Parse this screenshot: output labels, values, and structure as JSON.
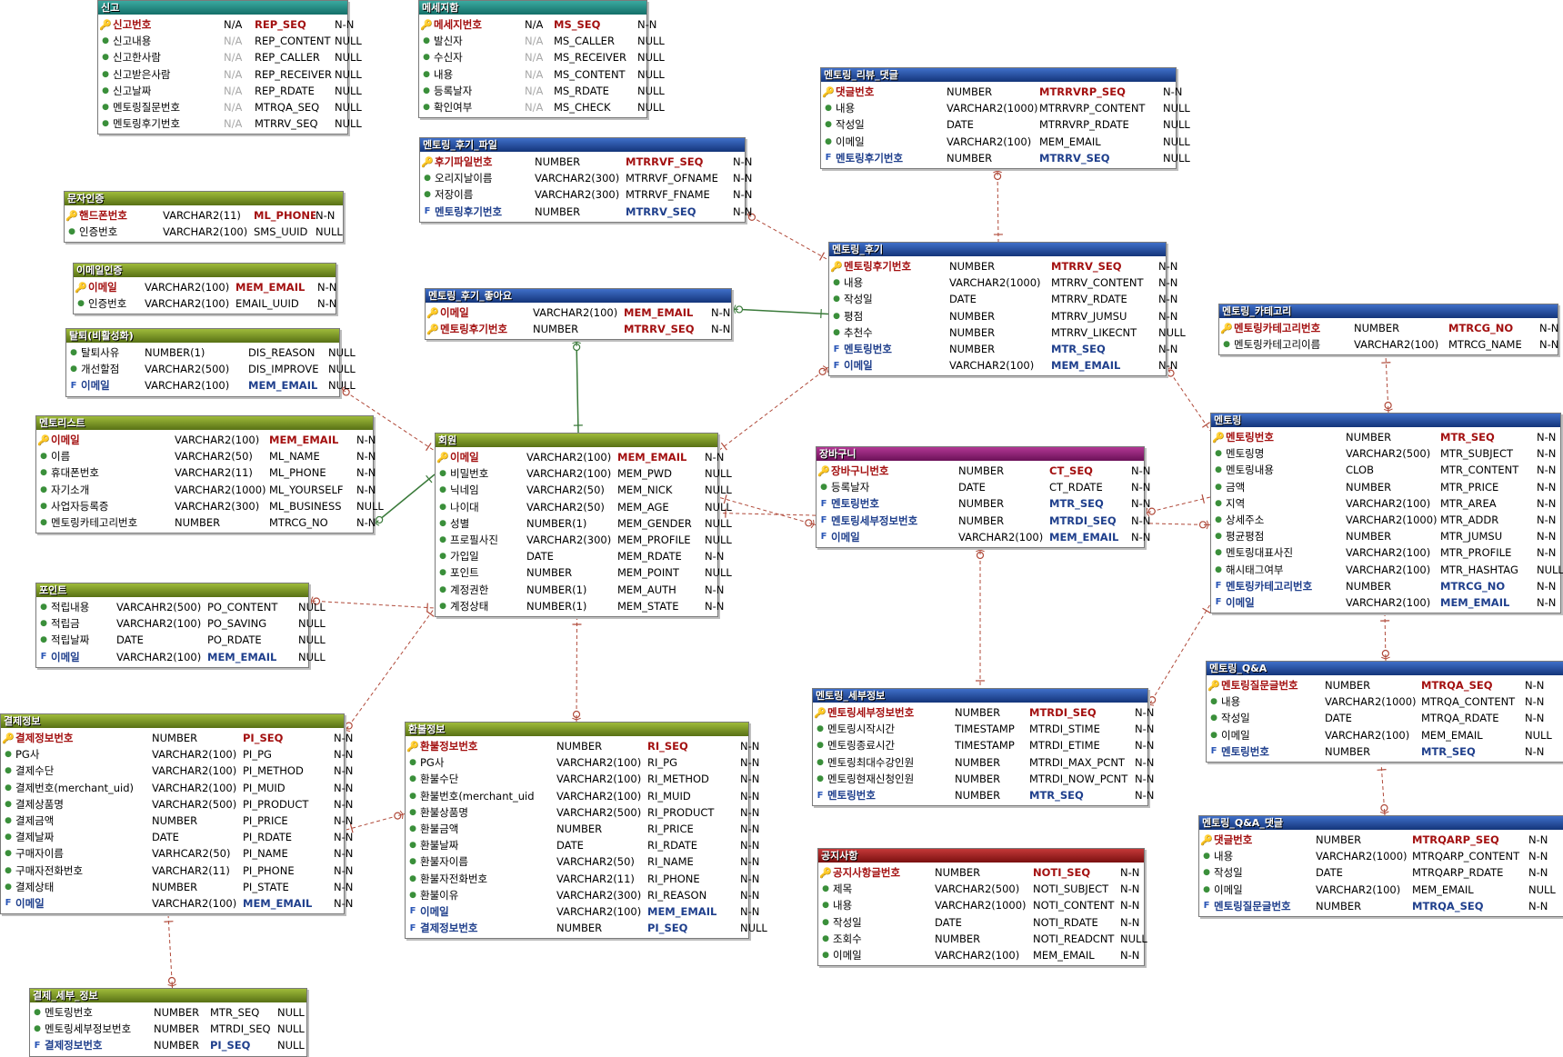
{
  "colors": {
    "teal": "#2a8f87",
    "green": "#7a942a",
    "blue": "#1f4ea0",
    "magenta": "#94247a",
    "red": "#a11d1d",
    "relation_line": "#b04a3a",
    "identifying_line": "#3a7a3a"
  },
  "entities": [
    {
      "id": "report",
      "title": "신고",
      "color": "teal",
      "rows": [
        [
          "pk",
          "신고번호",
          "N/A",
          "REP_SEQ",
          "N-N"
        ],
        [
          "a",
          "신고내용",
          "N/A",
          "REP_CONTENT",
          "NULL"
        ],
        [
          "a",
          "신고한사람",
          "N/A",
          "REP_CALLER",
          "NULL"
        ],
        [
          "a",
          "신고받은사람",
          "N/A",
          "REP_RECEIVER",
          "NULL"
        ],
        [
          "a",
          "신고날짜",
          "N/A",
          "REP_RDATE",
          "NULL"
        ],
        [
          "a",
          "멘토링질문번호",
          "N/A",
          "MTRQA_SEQ",
          "NULL"
        ],
        [
          "a",
          "멘토링후기번호",
          "N/A",
          "MTRRV_SEQ",
          "NULL"
        ]
      ]
    },
    {
      "id": "message",
      "title": "메세지함",
      "color": "teal",
      "rows": [
        [
          "pk",
          "메세지번호",
          "N/A",
          "MS_SEQ",
          "N-N"
        ],
        [
          "a",
          "발신자",
          "N/A",
          "MS_CALLER",
          "NULL"
        ],
        [
          "a",
          "수신자",
          "N/A",
          "MS_RECEIVER",
          "NULL"
        ],
        [
          "a",
          "내용",
          "N/A",
          "MS_CONTENT",
          "NULL"
        ],
        [
          "a",
          "등록날자",
          "N/A",
          "MS_RDATE",
          "NULL"
        ],
        [
          "a",
          "확인여부",
          "N/A",
          "MS_CHECK",
          "NULL"
        ]
      ]
    },
    {
      "id": "sms_auth",
      "title": "문자인증",
      "color": "green",
      "rows": [
        [
          "pk",
          "핸드폰번호",
          "VARCHAR2(11)",
          "ML_PHONE",
          "N-N"
        ],
        [
          "a",
          "인증번호",
          "VARCHAR2(100)",
          "SMS_UUID",
          "NULL"
        ]
      ]
    },
    {
      "id": "email_auth",
      "title": "이메일인증",
      "color": "green",
      "rows": [
        [
          "pk",
          "이메일",
          "VARCHAR2(100)",
          "MEM_EMAIL",
          "N-N"
        ],
        [
          "a",
          "인증번호",
          "VARCHAR2(100)",
          "EMAIL_UUID",
          "N-N"
        ]
      ]
    },
    {
      "id": "withdraw",
      "title": "탈퇴(비활성화)",
      "color": "green",
      "rows": [
        [
          "a",
          "탈퇴사유",
          "NUMBER(1)",
          "DIS_REASON",
          "NULL"
        ],
        [
          "a",
          "개선할점",
          "VARCHAR2(500)",
          "DIS_IMPROVE",
          "NULL"
        ],
        [
          "fk",
          "이메일",
          "VARCHAR2(100)",
          "MEM_EMAIL",
          "NULL"
        ]
      ]
    },
    {
      "id": "mentor_list",
      "title": "멘토리스트",
      "color": "green",
      "rows": [
        [
          "pfk",
          "이메일",
          "VARCHAR2(100)",
          "MEM_EMAIL",
          "N-N"
        ],
        [
          "a",
          "이름",
          "VARCHAR2(50)",
          "ML_NAME",
          "N-N"
        ],
        [
          "a",
          "휴대폰번호",
          "VARCHAR2(11)",
          "ML_PHONE",
          "N-N"
        ],
        [
          "a",
          "자기소개",
          "VARCHAR2(1000)",
          "ML_YOURSELF",
          "N-N"
        ],
        [
          "a",
          "사업자등록증",
          "VARCHAR2(300)",
          "ML_BUSINESS",
          "NULL"
        ],
        [
          "a",
          "멘토링카테고리번호",
          "NUMBER",
          "MTRCG_NO",
          "N-N"
        ]
      ]
    },
    {
      "id": "point",
      "title": "포인트",
      "color": "green",
      "rows": [
        [
          "a",
          "적립내용",
          "VARCAHR2(500)",
          "PO_CONTENT",
          "NULL"
        ],
        [
          "a",
          "적립금",
          "VARCHAR2(100)",
          "PO_SAVING",
          "NULL"
        ],
        [
          "a",
          "적립날짜",
          "DATE",
          "PO_RDATE",
          "NULL"
        ],
        [
          "fk",
          "이메일",
          "VARCHAR2(100)",
          "MEM_EMAIL",
          "NULL"
        ]
      ]
    },
    {
      "id": "payment",
      "title": "결제정보",
      "color": "green",
      "rows": [
        [
          "pk",
          "결제정보번호",
          "NUMBER",
          "PI_SEQ",
          "N-N"
        ],
        [
          "a",
          "PG사",
          "VARCHAR2(100)",
          "PI_PG",
          "N-N"
        ],
        [
          "a",
          "결제수단",
          "VARCHAR2(100)",
          "PI_METHOD",
          "N-N"
        ],
        [
          "a",
          "결제번호(merchant_uid)",
          "VARCHAR2(100)",
          "PI_MUID",
          "N-N"
        ],
        [
          "a",
          "결제상품명",
          "VARCHAR2(500)",
          "PI_PRODUCT",
          "N-N"
        ],
        [
          "a",
          "결제금액",
          "NUMBER",
          "PI_PRICE",
          "N-N"
        ],
        [
          "a",
          "결제날짜",
          "DATE",
          "PI_RDATE",
          "N-N"
        ],
        [
          "a",
          "구매자이름",
          "VARHCAR2(50)",
          "PI_NAME",
          "N-N"
        ],
        [
          "a",
          "구매자전화번호",
          "VARCHAR2(11)",
          "PI_PHONE",
          "N-N"
        ],
        [
          "a",
          "결제상태",
          "NUMBER",
          "PI_STATE",
          "N-N"
        ],
        [
          "fk",
          "이메일",
          "VARCHAR2(100)",
          "MEM_EMAIL",
          "N-N"
        ]
      ]
    },
    {
      "id": "payment_detail",
      "title": "결제_세부_정보",
      "color": "green",
      "rows": [
        [
          "a",
          "멘토링번호",
          "NUMBER",
          "MTR_SEQ",
          "NULL"
        ],
        [
          "a",
          "멘토링세부정보번호",
          "NUMBER",
          "MTRDI_SEQ",
          "NULL"
        ],
        [
          "fk",
          "결제정보번호",
          "NUMBER",
          "PI_SEQ",
          "NULL"
        ]
      ]
    },
    {
      "id": "review_file",
      "title": "멘토링_후기_파일",
      "color": "blue",
      "rows": [
        [
          "pk",
          "후기파일번호",
          "NUMBER",
          "MTRRVF_SEQ",
          "N-N"
        ],
        [
          "a",
          "오리지날이름",
          "VARCHAR2(300)",
          "MTRRVF_OFNAME",
          "N-N"
        ],
        [
          "a",
          "저장이름",
          "VARCHAR2(300)",
          "MTRRVF_FNAME",
          "N-N"
        ],
        [
          "fk",
          "멘토링후기번호",
          "NUMBER",
          "MTRRV_SEQ",
          "N-N"
        ]
      ]
    },
    {
      "id": "review_like",
      "title": "멘토링_후기_좋아요",
      "color": "blue",
      "rows": [
        [
          "pfk",
          "이메일",
          "VARCHAR2(100)",
          "MEM_EMAIL",
          "N-N"
        ],
        [
          "pfk",
          "멘토링후기번호",
          "NUMBER",
          "MTRRV_SEQ",
          "N-N"
        ]
      ]
    },
    {
      "id": "member",
      "title": "회원",
      "color": "green",
      "rows": [
        [
          "pk",
          "이메일",
          "VARCHAR2(100)",
          "MEM_EMAIL",
          "N-N"
        ],
        [
          "a",
          "비밀번호",
          "VARCHAR2(100)",
          "MEM_PWD",
          "NULL"
        ],
        [
          "a",
          "닉네임",
          "VARCHAR2(50)",
          "MEM_NICK",
          "NULL"
        ],
        [
          "a",
          "나이대",
          "VARCHAR2(50)",
          "MEM_AGE",
          "NULL"
        ],
        [
          "a",
          "성별",
          "NUMBER(1)",
          "MEM_GENDER",
          "NULL"
        ],
        [
          "a",
          "프로필사진",
          "VARCHAR2(300)",
          "MEM_PROFILE",
          "NULL"
        ],
        [
          "a",
          "가입일",
          "DATE",
          "MEM_RDATE",
          "N-N"
        ],
        [
          "a",
          "포인트",
          "NUMBER",
          "MEM_POINT",
          "NULL"
        ],
        [
          "a",
          "계정권한",
          "NUMBER(1)",
          "MEM_AUTH",
          "N-N"
        ],
        [
          "a",
          "계정상태",
          "NUMBER(1)",
          "MEM_STATE",
          "N-N"
        ]
      ]
    },
    {
      "id": "refund",
      "title": "환불정보",
      "color": "green",
      "rows": [
        [
          "pk",
          "환불정보번호",
          "NUMBER",
          "RI_SEQ",
          "N-N"
        ],
        [
          "a",
          "PG사",
          "VARCHAR2(100)",
          "RI_PG",
          "N-N"
        ],
        [
          "a",
          "환불수단",
          "VARCHAR2(100)",
          "RI_METHOD",
          "N-N"
        ],
        [
          "a",
          "환불번호(merchant_uid",
          "VARCHAR2(100)",
          "RI_MUID",
          "N-N"
        ],
        [
          "a",
          "환불상품명",
          "VARCHAR2(500)",
          "RI_PRODUCT",
          "N-N"
        ],
        [
          "a",
          "환불금액",
          "NUMBER",
          "RI_PRICE",
          "N-N"
        ],
        [
          "a",
          "환불날짜",
          "DATE",
          "RI_RDATE",
          "N-N"
        ],
        [
          "a",
          "환불자이름",
          "VARCHAR2(50)",
          "RI_NAME",
          "N-N"
        ],
        [
          "a",
          "환불자전화번호",
          "VARCHAR2(11)",
          "RI_PHONE",
          "N-N"
        ],
        [
          "a",
          "환불이유",
          "VARCHAR2(300)",
          "RI_REASON",
          "N-N"
        ],
        [
          "fk",
          "이메일",
          "VARCHAR2(100)",
          "MEM_EMAIL",
          "N-N"
        ],
        [
          "fk",
          "결제정보번호",
          "NUMBER",
          "PI_SEQ",
          "NULL"
        ]
      ]
    },
    {
      "id": "review_reply",
      "title": "멘토링_리뷰_댓글",
      "color": "blue",
      "rows": [
        [
          "pk",
          "댓글번호",
          "NUMBER",
          "MTRRVRP_SEQ",
          "N-N"
        ],
        [
          "a",
          "내용",
          "VARCHAR2(1000)",
          "MTRRVRP_CONTENT",
          "NULL"
        ],
        [
          "a",
          "작성일",
          "DATE",
          "MTRRVRP_RDATE",
          "NULL"
        ],
        [
          "a",
          "이메일",
          "VARCHAR2(100)",
          "MEM_EMAIL",
          "NULL"
        ],
        [
          "fk",
          "멘토링후기번호",
          "NUMBER",
          "MTRRV_SEQ",
          "NULL"
        ]
      ]
    },
    {
      "id": "review",
      "title": "멘토링_후기",
      "color": "blue",
      "rows": [
        [
          "pk",
          "멘토링후기번호",
          "NUMBER",
          "MTRRV_SEQ",
          "N-N"
        ],
        [
          "a",
          "내용",
          "VARCHAR2(1000)",
          "MTRRV_CONTENT",
          "N-N"
        ],
        [
          "a",
          "작성일",
          "DATE",
          "MTRRV_RDATE",
          "N-N"
        ],
        [
          "a",
          "평점",
          "NUMBER",
          "MTRRV_JUMSU",
          "N-N"
        ],
        [
          "a",
          "추천수",
          "NUMBER",
          "MTRRV_LIKECNT",
          "NULL"
        ],
        [
          "fk",
          "멘토링번호",
          "NUMBER",
          "MTR_SEQ",
          "N-N"
        ],
        [
          "fk",
          "이메일",
          "VARCHAR2(100)",
          "MEM_EMAIL",
          "N-N"
        ]
      ]
    },
    {
      "id": "cart",
      "title": "장바구니",
      "color": "magenta",
      "rows": [
        [
          "pk",
          "장바구니번호",
          "NUMBER",
          "CT_SEQ",
          "N-N"
        ],
        [
          "a",
          "등록날자",
          "DATE",
          "CT_RDATE",
          "N-N"
        ],
        [
          "fk",
          "멘토링번호",
          "NUMBER",
          "MTR_SEQ",
          "N-N"
        ],
        [
          "fk",
          "멘토링세부정보번호",
          "NUMBER",
          "MTRDI_SEQ",
          "N-N"
        ],
        [
          "fk",
          "이메일",
          "VARCHAR2(100)",
          "MEM_EMAIL",
          "N-N"
        ]
      ]
    },
    {
      "id": "category",
      "title": "멘토링_카테고리",
      "color": "blue",
      "rows": [
        [
          "pk",
          "멘토링카테고리번호",
          "NUMBER",
          "MTRCG_NO",
          "N-N"
        ],
        [
          "a",
          "멘토링카테고리이름",
          "VARCHAR2(100)",
          "MTRCG_NAME",
          "N-N"
        ]
      ]
    },
    {
      "id": "mentoring",
      "title": "멘토링",
      "color": "blue",
      "rows": [
        [
          "pk",
          "멘토링번호",
          "NUMBER",
          "MTR_SEQ",
          "N-N"
        ],
        [
          "a",
          "멘토링명",
          "VARCHAR2(500)",
          "MTR_SUBJECT",
          "N-N"
        ],
        [
          "a",
          "멘토링내용",
          "CLOB",
          "MTR_CONTENT",
          "N-N"
        ],
        [
          "a",
          "금액",
          "NUMBER",
          "MTR_PRICE",
          "N-N"
        ],
        [
          "a",
          "지역",
          "VARCHAR2(100)",
          "MTR_AREA",
          "N-N"
        ],
        [
          "a",
          "상세주소",
          "VARCHAR2(1000)",
          "MTR_ADDR",
          "N-N"
        ],
        [
          "a",
          "평균평점",
          "NUMBER",
          "MTR_JUMSU",
          "N-N"
        ],
        [
          "a",
          "멘토링대표사진",
          "VARCHAR2(100)",
          "MTR_PROFILE",
          "N-N"
        ],
        [
          "a",
          "해시태그여부",
          "VARCHAR2(100)",
          "MTR_HASHTAG",
          "NULL"
        ],
        [
          "fk",
          "멘토링카테고리번호",
          "NUMBER",
          "MTRCG_NO",
          "N-N"
        ],
        [
          "fk",
          "이메일",
          "VARCHAR2(100)",
          "MEM_EMAIL",
          "N-N"
        ]
      ]
    },
    {
      "id": "detail",
      "title": "멘토링_세부정보",
      "color": "blue",
      "rows": [
        [
          "pk",
          "멘토링세부정보번호",
          "NUMBER",
          "MTRDI_SEQ",
          "N-N"
        ],
        [
          "a",
          "멘토링시작시간",
          "TIMESTAMP",
          "MTRDI_STIME",
          "N-N"
        ],
        [
          "a",
          "멘토링종료시간",
          "TIMESTAMP",
          "MTRDI_ETIME",
          "N-N"
        ],
        [
          "a",
          "멘토링최대수강인원",
          "NUMBER",
          "MTRDI_MAX_PCNT",
          "N-N"
        ],
        [
          "a",
          "멘토링현재신청인원",
          "NUMBER",
          "MTRDI_NOW_PCNT",
          "N-N"
        ],
        [
          "fk",
          "멘토링번호",
          "NUMBER",
          "MTR_SEQ",
          "N-N"
        ]
      ]
    },
    {
      "id": "qa",
      "title": "멘토링_Q&A",
      "color": "blue",
      "rows": [
        [
          "pk",
          "멘토링질문글번호",
          "NUMBER",
          "MTRQA_SEQ",
          "N-N"
        ],
        [
          "a",
          "내용",
          "VARCHAR2(1000)",
          "MTRQA_CONTENT",
          "N-N"
        ],
        [
          "a",
          "작성일",
          "DATE",
          "MTRQA_RDATE",
          "N-N"
        ],
        [
          "a",
          "이메일",
          "VARCHAR2(100)",
          "MEM_EMAIL",
          "NULL"
        ],
        [
          "fk",
          "멘토링번호",
          "NUMBER",
          "MTR_SEQ",
          "N-N"
        ]
      ]
    },
    {
      "id": "qa_reply",
      "title": "멘토링_Q&A_댓글",
      "color": "blue",
      "rows": [
        [
          "pk",
          "댓글번호",
          "NUMBER",
          "MTRQARP_SEQ",
          "N-N"
        ],
        [
          "a",
          "내용",
          "VARCHAR2(1000)",
          "MTRQARP_CONTENT",
          "N-N"
        ],
        [
          "a",
          "작성일",
          "DATE",
          "MTRQARP_RDATE",
          "N-N"
        ],
        [
          "a",
          "이메일",
          "VARCHAR2(100)",
          "MEM_EMAIL",
          "NULL"
        ],
        [
          "fk",
          "멘토링질문글번호",
          "NUMBER",
          "MTRQA_SEQ",
          "N-N"
        ]
      ]
    },
    {
      "id": "notice",
      "title": "공지사항",
      "color": "red",
      "rows": [
        [
          "pk",
          "공지사항글번호",
          "NUMBER",
          "NOTI_SEQ",
          "N-N"
        ],
        [
          "a",
          "제목",
          "VARCHAR2(500)",
          "NOTI_SUBJECT",
          "N-N"
        ],
        [
          "a",
          "내용",
          "VARCHAR2(1000)",
          "NOTI_CONTENT",
          "N-N"
        ],
        [
          "a",
          "작성일",
          "DATE",
          "NOTI_RDATE",
          "N-N"
        ],
        [
          "a",
          "조회수",
          "NUMBER",
          "NOTI_READCNT",
          "NULL"
        ],
        [
          "a",
          "이메일",
          "VARCHAR2(100)",
          "MEM_EMAIL",
          "N-N"
        ]
      ]
    }
  ],
  "relationships": [
    {
      "from": "withdraw",
      "to": "member",
      "type": "non-identifying"
    },
    {
      "from": "mentor_list",
      "to": "member",
      "type": "identifying"
    },
    {
      "from": "point",
      "to": "member",
      "type": "non-identifying"
    },
    {
      "from": "payment",
      "to": "member",
      "type": "non-identifying"
    },
    {
      "from": "refund",
      "to": "member",
      "type": "non-identifying"
    },
    {
      "from": "refund",
      "to": "payment",
      "type": "non-identifying"
    },
    {
      "from": "payment_detail",
      "to": "payment",
      "type": "non-identifying"
    },
    {
      "from": "review_like",
      "to": "member",
      "type": "identifying"
    },
    {
      "from": "review_like",
      "to": "review",
      "type": "identifying"
    },
    {
      "from": "review_file",
      "to": "review",
      "type": "non-identifying"
    },
    {
      "from": "review_reply",
      "to": "review",
      "type": "non-identifying"
    },
    {
      "from": "review",
      "to": "member",
      "type": "non-identifying"
    },
    {
      "from": "review",
      "to": "mentoring",
      "type": "non-identifying"
    },
    {
      "from": "cart",
      "to": "member",
      "type": "non-identifying"
    },
    {
      "from": "cart",
      "to": "mentoring",
      "type": "non-identifying"
    },
    {
      "from": "cart",
      "to": "detail",
      "type": "non-identifying"
    },
    {
      "from": "mentoring",
      "to": "member",
      "type": "non-identifying"
    },
    {
      "from": "mentoring",
      "to": "category",
      "type": "non-identifying"
    },
    {
      "from": "detail",
      "to": "mentoring",
      "type": "non-identifying"
    },
    {
      "from": "qa",
      "to": "mentoring",
      "type": "non-identifying"
    },
    {
      "from": "qa_reply",
      "to": "qa",
      "type": "non-identifying"
    }
  ]
}
